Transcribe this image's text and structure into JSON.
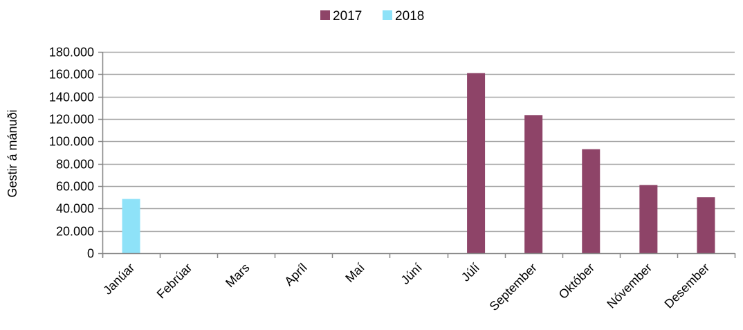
{
  "chart_data": {
    "type": "bar",
    "title": "",
    "xlabel": "",
    "ylabel": "Gestir á mánuði",
    "ylim": [
      0,
      180000
    ],
    "y_ticks": [
      0,
      20000,
      40000,
      60000,
      80000,
      100000,
      120000,
      140000,
      160000,
      180000
    ],
    "y_tick_labels": [
      "0",
      "20.000",
      "40.000",
      "60.000",
      "80.000",
      "100.000",
      "120.000",
      "140.000",
      "160.000",
      "180.000"
    ],
    "categories": [
      "Janúar",
      "Febrúar",
      "Mars",
      "Apríl",
      "Maí",
      "Júní",
      "Júlí",
      "September",
      "Október",
      "Nóvember",
      "Desember"
    ],
    "series": [
      {
        "name": "2017",
        "color": "#8E4468",
        "values": [
          null,
          null,
          null,
          null,
          null,
          null,
          161000,
          123500,
          93000,
          61000,
          50000
        ]
      },
      {
        "name": "2018",
        "color": "#8EE2F8",
        "values": [
          48500,
          null,
          null,
          null,
          null,
          null,
          null,
          null,
          null,
          null,
          null
        ]
      }
    ],
    "grid": true,
    "gridline_color": "#A6A6A6",
    "legend_position": "top-center"
  }
}
